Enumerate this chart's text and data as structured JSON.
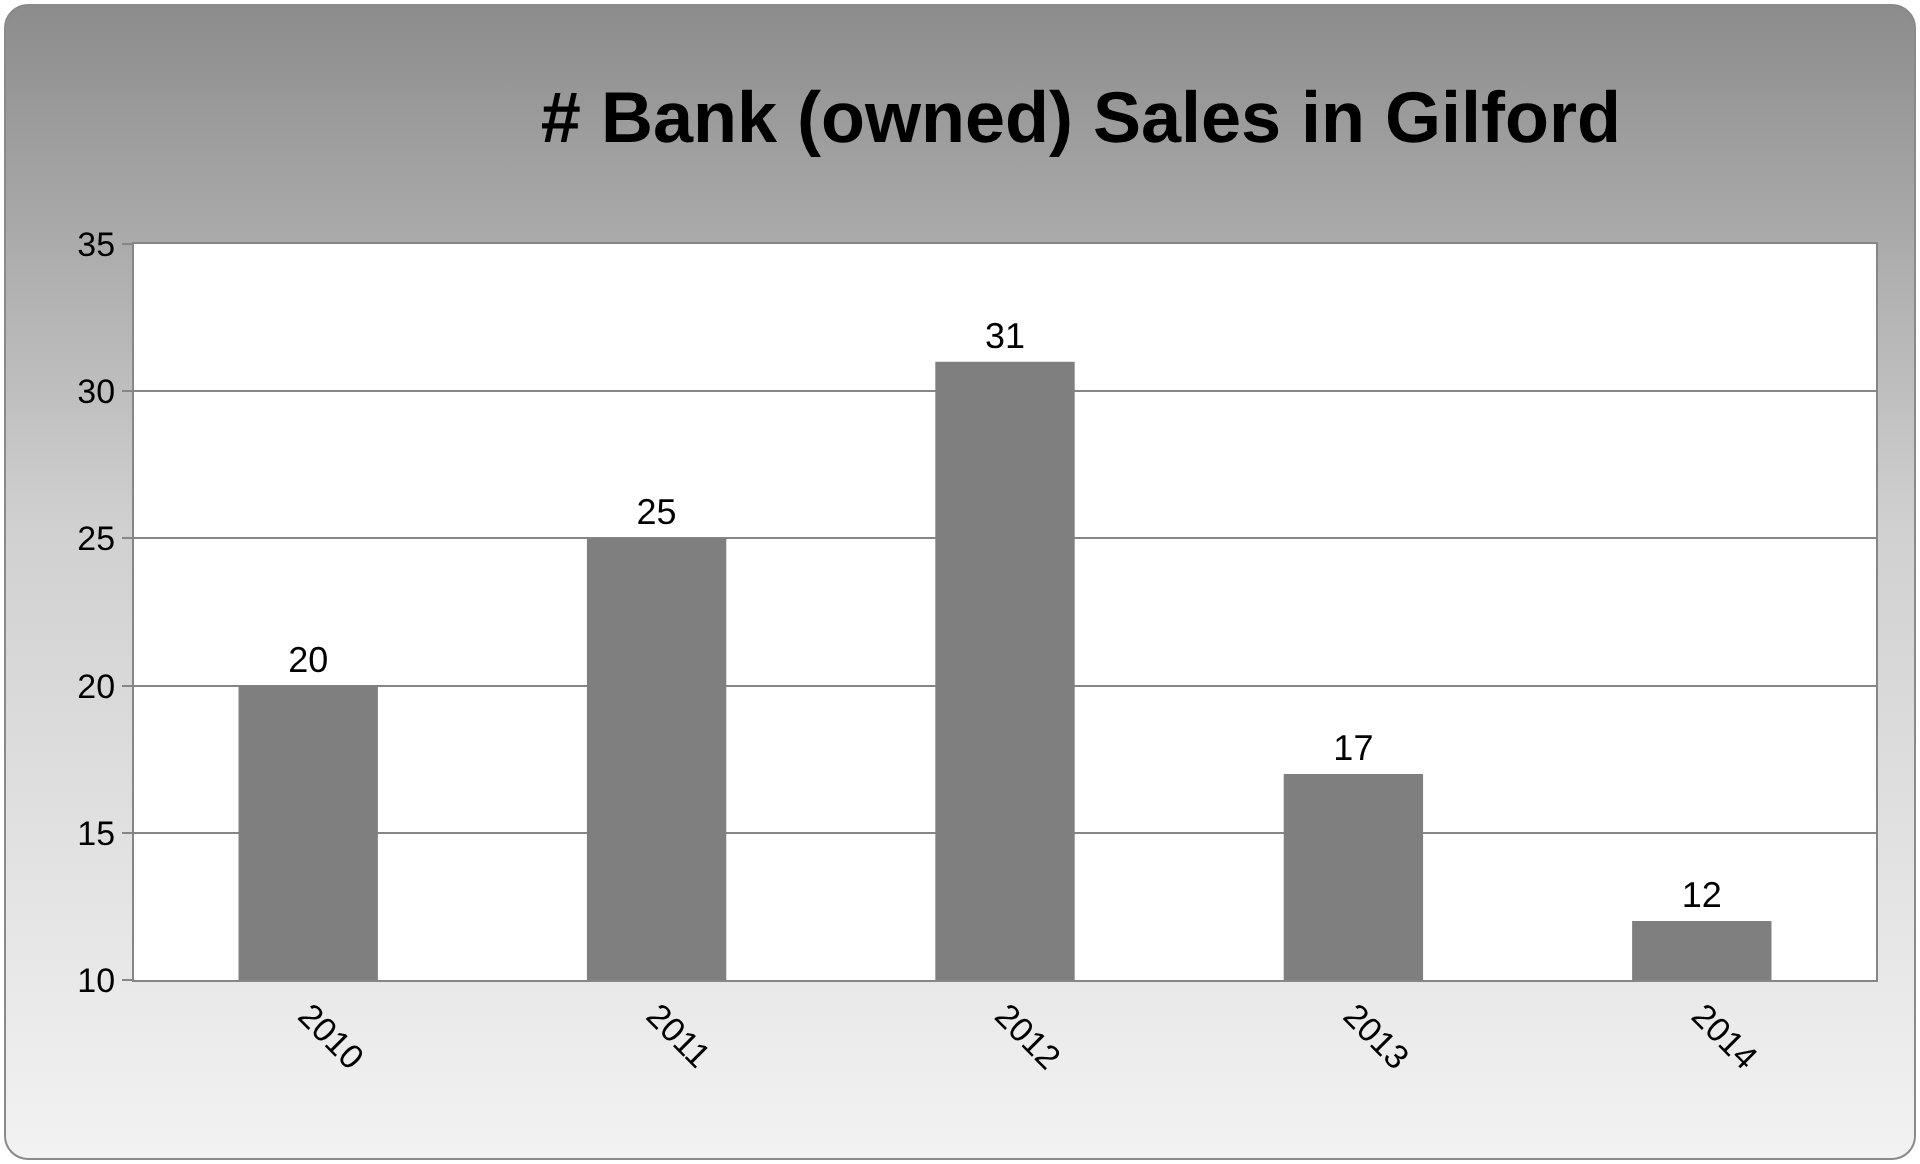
{
  "chart_data": {
    "type": "bar",
    "title": "# Bank (owned) Sales in Gilford",
    "categories": [
      "2010",
      "2011",
      "2012",
      "2013",
      "2014"
    ],
    "values": [
      20,
      25,
      31,
      17,
      12
    ],
    "color": "#7f7f7f",
    "ylim": [
      10,
      35
    ],
    "yticks": [
      10,
      15,
      20,
      25,
      30,
      35
    ],
    "grid": "y",
    "data_labels": true
  }
}
